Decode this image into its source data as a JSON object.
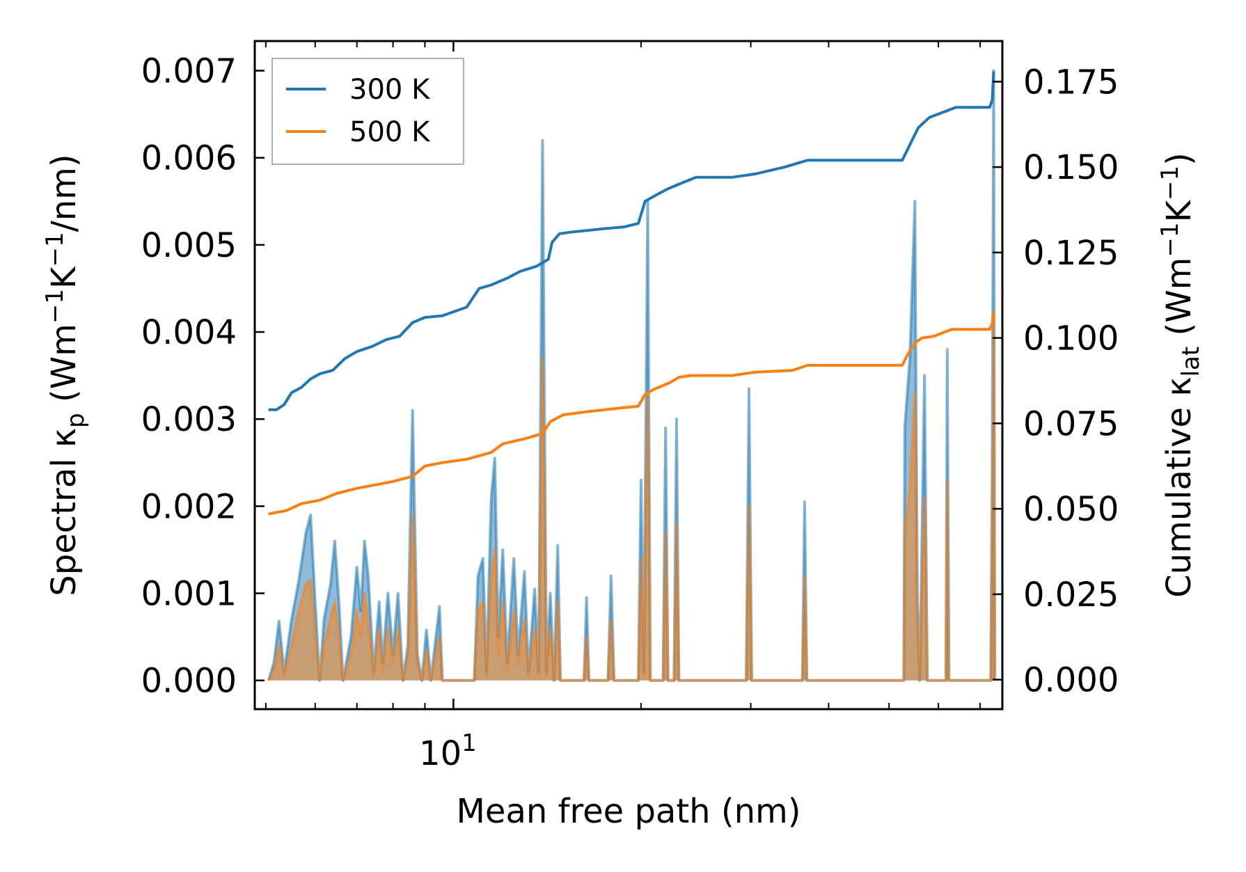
{
  "chart_data": {
    "type": "line",
    "xlabel": "Mean free path (nm)",
    "xscale": "log",
    "xlim": [
      4.8,
      76
    ],
    "x_major_ticks": [
      {
        "value": 10,
        "base": "10",
        "exp": "1"
      }
    ],
    "x_minor_ticks": [
      5,
      6,
      7,
      8,
      9,
      20,
      30,
      40,
      50,
      60,
      70
    ],
    "y_left": {
      "label_parts": [
        "Spectral κ",
        "p",
        " (Wm",
        "−1",
        "K",
        "−1",
        "/nm)"
      ],
      "lim": [
        -0.00033,
        0.00734
      ],
      "ticks": [
        "0.000",
        "0.001",
        "0.002",
        "0.003",
        "0.004",
        "0.005",
        "0.006",
        "0.007"
      ],
      "tick_values": [
        0,
        0.001,
        0.002,
        0.003,
        0.004,
        0.005,
        0.006,
        0.007
      ]
    },
    "y_right": {
      "label_parts": [
        "Cumulative κ",
        "lat",
        " (Wm",
        "−1",
        "K",
        "−1",
        ")"
      ],
      "lim": [
        -0.00863,
        0.18688
      ],
      "ticks": [
        "0.000",
        "0.025",
        "0.050",
        "0.075",
        "0.100",
        "0.125",
        "0.150",
        "0.175"
      ],
      "tick_values": [
        0,
        0.025,
        0.05,
        0.075,
        0.1,
        0.125,
        0.15,
        0.175
      ]
    },
    "legend_position": "upper-left",
    "series": [
      {
        "name": "300 K",
        "color": "#1f77b4",
        "cumulative": [
          [
            5.05,
            0.079
          ],
          [
            5.2,
            0.079
          ],
          [
            5.35,
            0.0805
          ],
          [
            5.5,
            0.084
          ],
          [
            5.7,
            0.0855
          ],
          [
            5.9,
            0.088
          ],
          [
            6.1,
            0.0895
          ],
          [
            6.4,
            0.0905
          ],
          [
            6.7,
            0.094
          ],
          [
            7.0,
            0.096
          ],
          [
            7.4,
            0.0975
          ],
          [
            7.8,
            0.0995
          ],
          [
            8.2,
            0.1005
          ],
          [
            8.6,
            0.1045
          ],
          [
            9.0,
            0.106
          ],
          [
            9.6,
            0.1065
          ],
          [
            10.5,
            0.109
          ],
          [
            11.0,
            0.1145
          ],
          [
            11.5,
            0.1155
          ],
          [
            12.2,
            0.1175
          ],
          [
            12.8,
            0.1195
          ],
          [
            13.6,
            0.121
          ],
          [
            14.2,
            0.123
          ],
          [
            14.4,
            0.128
          ],
          [
            14.8,
            0.1305
          ],
          [
            15.5,
            0.131
          ],
          [
            16.5,
            0.1315
          ],
          [
            17.5,
            0.132
          ],
          [
            18.8,
            0.1325
          ],
          [
            19.8,
            0.1335
          ],
          [
            20.3,
            0.14
          ],
          [
            21.0,
            0.1415
          ],
          [
            22.0,
            0.1435
          ],
          [
            23.0,
            0.145
          ],
          [
            24.5,
            0.147
          ],
          [
            28,
            0.147
          ],
          [
            30.5,
            0.148
          ],
          [
            34,
            0.15
          ],
          [
            37,
            0.152
          ],
          [
            40,
            0.152
          ],
          [
            52.5,
            0.152
          ],
          [
            54.5,
            0.158
          ],
          [
            55.7,
            0.1615
          ],
          [
            58,
            0.1645
          ],
          [
            64,
            0.1675
          ],
          [
            72.5,
            0.1675
          ],
          [
            73.2,
            0.1695
          ],
          [
            73.6,
            0.178
          ]
        ],
        "spectral": [
          [
            5.05,
            0
          ],
          [
            5.15,
            0.0002
          ],
          [
            5.25,
            0.00068
          ],
          [
            5.35,
            0.0001
          ],
          [
            5.5,
            0.0007
          ],
          [
            5.65,
            0.00115
          ],
          [
            5.8,
            0.0017
          ],
          [
            5.9,
            0.0019
          ],
          [
            6.0,
            0.0009
          ],
          [
            6.1,
            0
          ],
          [
            6.2,
            0.0007
          ],
          [
            6.35,
            0.0011
          ],
          [
            6.45,
            0.0016
          ],
          [
            6.55,
            0.0009
          ],
          [
            6.65,
            0
          ],
          [
            6.85,
            0.0005
          ],
          [
            7.0,
            0.0013
          ],
          [
            7.1,
            0.0008
          ],
          [
            7.2,
            0.0016
          ],
          [
            7.3,
            0.0012
          ],
          [
            7.45,
            0.0001
          ],
          [
            7.6,
            0.0009
          ],
          [
            7.7,
            0.0002
          ],
          [
            7.85,
            0.001
          ],
          [
            8.0,
            0.0003
          ],
          [
            8.15,
            0.001
          ],
          [
            8.3,
            0
          ],
          [
            8.45,
            0.0004
          ],
          [
            8.6,
            0.0031
          ],
          [
            8.75,
            0.0003
          ],
          [
            8.9,
            0
          ],
          [
            9.05,
            0.00058
          ],
          [
            9.2,
            0
          ],
          [
            9.5,
            0.00085
          ],
          [
            9.6,
            0
          ],
          [
            10.8,
            0
          ],
          [
            10.95,
            0.0012
          ],
          [
            11.15,
            0.0014
          ],
          [
            11.3,
            0.0001
          ],
          [
            11.5,
            0.0021
          ],
          [
            11.65,
            0.00255
          ],
          [
            11.8,
            0.0005
          ],
          [
            12.0,
            0.0015
          ],
          [
            12.2,
            0.0002
          ],
          [
            12.5,
            0.0014
          ],
          [
            12.7,
            0.0003
          ],
          [
            13.0,
            0.00125
          ],
          [
            13.2,
            0.0001
          ],
          [
            13.5,
            0.00105
          ],
          [
            13.7,
            0.0001
          ],
          [
            13.9,
            0.0062
          ],
          [
            14.1,
            0.0001
          ],
          [
            14.3,
            0.001
          ],
          [
            14.5,
            0
          ],
          [
            14.7,
            0.00155
          ],
          [
            14.85,
            0
          ],
          [
            16.2,
            0
          ],
          [
            16.35,
            0.00095
          ],
          [
            16.5,
            0
          ],
          [
            17.7,
            0
          ],
          [
            17.9,
            0.0012
          ],
          [
            18.1,
            0
          ],
          [
            19.8,
            0
          ],
          [
            20.0,
            0.0023
          ],
          [
            20.2,
            0.0001
          ],
          [
            20.5,
            0.0055
          ],
          [
            20.7,
            0
          ],
          [
            21.7,
            0
          ],
          [
            21.9,
            0.0029
          ],
          [
            22.1,
            0
          ],
          [
            22.6,
            0
          ],
          [
            22.8,
            0.003
          ],
          [
            23.0,
            0
          ],
          [
            29.5,
            0
          ],
          [
            29.8,
            0.00335
          ],
          [
            30.1,
            0
          ],
          [
            36.3,
            0
          ],
          [
            36.6,
            0.00205
          ],
          [
            36.9,
            0
          ],
          [
            52.8,
            0
          ],
          [
            53.0,
            0.0029
          ],
          [
            54.0,
            0.0037
          ],
          [
            55.0,
            0.0055
          ],
          [
            55.5,
            0.001
          ],
          [
            56.0,
            0
          ],
          [
            57.0,
            0.0035
          ],
          [
            57.6,
            0
          ],
          [
            61.7,
            0
          ],
          [
            62.0,
            0.0038
          ],
          [
            62.4,
            0
          ],
          [
            72.8,
            0
          ],
          [
            73.2,
            0.0025
          ],
          [
            73.6,
            0.007
          ],
          [
            73.9,
            0
          ]
        ]
      },
      {
        "name": "500 K",
        "color": "#ff7f0e",
        "cumulative": [
          [
            5.05,
            0.0485
          ],
          [
            5.4,
            0.0495
          ],
          [
            5.7,
            0.0515
          ],
          [
            6.1,
            0.0525
          ],
          [
            6.5,
            0.0545
          ],
          [
            7.0,
            0.056
          ],
          [
            7.5,
            0.057
          ],
          [
            8.0,
            0.058
          ],
          [
            8.6,
            0.0595
          ],
          [
            9.0,
            0.0625
          ],
          [
            9.6,
            0.0635
          ],
          [
            10.5,
            0.0645
          ],
          [
            11.5,
            0.0665
          ],
          [
            12.0,
            0.069
          ],
          [
            13.0,
            0.0705
          ],
          [
            13.9,
            0.072
          ],
          [
            14.3,
            0.0755
          ],
          [
            15.0,
            0.0775
          ],
          [
            16.5,
            0.0785
          ],
          [
            17.5,
            0.079
          ],
          [
            18.5,
            0.0795
          ],
          [
            19.8,
            0.08
          ],
          [
            20.3,
            0.0835
          ],
          [
            21.0,
            0.085
          ],
          [
            22.3,
            0.087
          ],
          [
            23.0,
            0.0885
          ],
          [
            24.0,
            0.089
          ],
          [
            28,
            0.089
          ],
          [
            30.5,
            0.09
          ],
          [
            35,
            0.0905
          ],
          [
            37,
            0.092
          ],
          [
            40,
            0.092
          ],
          [
            52.5,
            0.092
          ],
          [
            53.5,
            0.095
          ],
          [
            55.0,
            0.0985
          ],
          [
            56.5,
            0.1
          ],
          [
            59,
            0.1005
          ],
          [
            63,
            0.1025
          ],
          [
            72.5,
            0.1025
          ],
          [
            73.2,
            0.104
          ],
          [
            73.6,
            0.108
          ]
        ],
        "spectral": [
          [
            5.05,
            0
          ],
          [
            5.15,
            0.0001
          ],
          [
            5.25,
            0.0004
          ],
          [
            5.35,
            5e-05
          ],
          [
            5.5,
            0.0004
          ],
          [
            5.65,
            0.0008
          ],
          [
            5.8,
            0.0011
          ],
          [
            5.9,
            0.00115
          ],
          [
            6.0,
            0.0005
          ],
          [
            6.1,
            0
          ],
          [
            6.2,
            0.0004
          ],
          [
            6.35,
            0.0007
          ],
          [
            6.45,
            0.0009
          ],
          [
            6.55,
            0.0005
          ],
          [
            6.65,
            0
          ],
          [
            6.85,
            0.0003
          ],
          [
            7.0,
            0.0008
          ],
          [
            7.1,
            0.0005
          ],
          [
            7.2,
            0.001
          ],
          [
            7.3,
            0.0007
          ],
          [
            7.45,
            5e-05
          ],
          [
            7.6,
            0.0006
          ],
          [
            7.7,
            0.0001
          ],
          [
            7.85,
            0.0006
          ],
          [
            8.0,
            0.0002
          ],
          [
            8.15,
            0.0006
          ],
          [
            8.3,
            0
          ],
          [
            8.45,
            0.0002
          ],
          [
            8.6,
            0.0019
          ],
          [
            8.75,
            0.0002
          ],
          [
            8.9,
            0
          ],
          [
            9.05,
            0.00035
          ],
          [
            9.2,
            0
          ],
          [
            9.5,
            0.0005
          ],
          [
            9.6,
            0
          ],
          [
            10.8,
            0
          ],
          [
            10.95,
            0.0008
          ],
          [
            11.15,
            0.0009
          ],
          [
            11.3,
            5e-05
          ],
          [
            11.5,
            0.0012
          ],
          [
            11.65,
            0.0015
          ],
          [
            11.8,
            0.0003
          ],
          [
            12.0,
            0.0009
          ],
          [
            12.2,
            0.0001
          ],
          [
            12.5,
            0.0008
          ],
          [
            12.7,
            0.0002
          ],
          [
            13.0,
            0.0007
          ],
          [
            13.2,
            5e-05
          ],
          [
            13.5,
            0.0006
          ],
          [
            13.7,
            5e-05
          ],
          [
            13.9,
            0.0037
          ],
          [
            14.1,
            5e-05
          ],
          [
            14.3,
            0.0006
          ],
          [
            14.5,
            0
          ],
          [
            14.7,
            0.0009
          ],
          [
            14.85,
            0
          ],
          [
            16.2,
            0
          ],
          [
            16.35,
            0.0005
          ],
          [
            16.5,
            0
          ],
          [
            17.7,
            0
          ],
          [
            17.9,
            0.0007
          ],
          [
            18.1,
            0
          ],
          [
            19.8,
            0
          ],
          [
            20.0,
            0.0014
          ],
          [
            20.2,
            5e-05
          ],
          [
            20.5,
            0.0033
          ],
          [
            20.7,
            0
          ],
          [
            21.7,
            0
          ],
          [
            21.9,
            0.0017
          ],
          [
            22.1,
            0
          ],
          [
            22.6,
            0
          ],
          [
            22.8,
            0.0018
          ],
          [
            23.0,
            0
          ],
          [
            29.5,
            0
          ],
          [
            29.8,
            0.002
          ],
          [
            30.1,
            0
          ],
          [
            36.3,
            0
          ],
          [
            36.6,
            0.0012
          ],
          [
            36.9,
            0
          ],
          [
            52.8,
            0
          ],
          [
            53.0,
            0.0017
          ],
          [
            54.0,
            0.0022
          ],
          [
            55.0,
            0.0033
          ],
          [
            55.5,
            0.0006
          ],
          [
            56.0,
            0
          ],
          [
            57.0,
            0.0021
          ],
          [
            57.6,
            0
          ],
          [
            61.7,
            0
          ],
          [
            62.0,
            0.0023
          ],
          [
            62.4,
            0
          ],
          [
            72.8,
            0
          ],
          [
            73.2,
            0.0015
          ],
          [
            73.6,
            0.0042
          ],
          [
            73.9,
            0
          ]
        ]
      }
    ]
  }
}
